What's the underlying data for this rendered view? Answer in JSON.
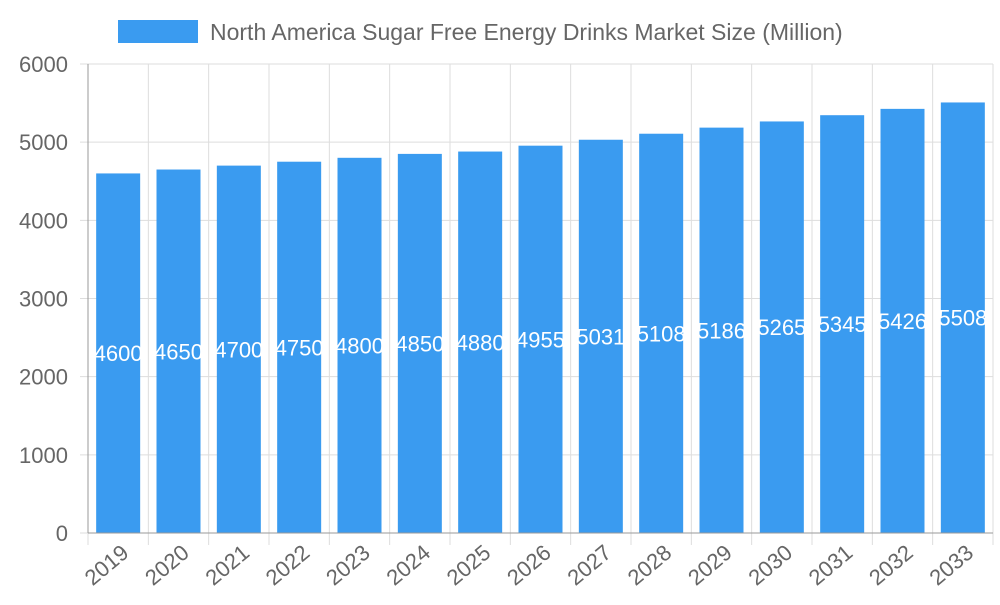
{
  "chart_data": {
    "type": "bar",
    "title": "",
    "xlabel": "",
    "ylabel": "",
    "categories": [
      "2019",
      "2020",
      "2021",
      "2022",
      "2023",
      "2024",
      "2025",
      "2026",
      "2027",
      "2028",
      "2029",
      "2030",
      "2031",
      "2032",
      "2033"
    ],
    "series": [
      {
        "name": "North America Sugar Free Energy Drinks Market Size (Million)",
        "values": [
          4600,
          4650,
          4700,
          4750,
          4800,
          4850,
          4880,
          4955,
          5031,
          5108,
          5186,
          5265,
          5345,
          5426,
          5508
        ]
      }
    ],
    "ylim": [
      0,
      6000
    ],
    "yticks": [
      0,
      1000,
      2000,
      3000,
      4000,
      5000,
      6000
    ],
    "grid": true,
    "legend_position": "top",
    "data_labels": true,
    "colors": {
      "bar": "#3a9bf0",
      "grid": "#dddddd",
      "text": "#666666",
      "label": "#ffffff"
    }
  }
}
